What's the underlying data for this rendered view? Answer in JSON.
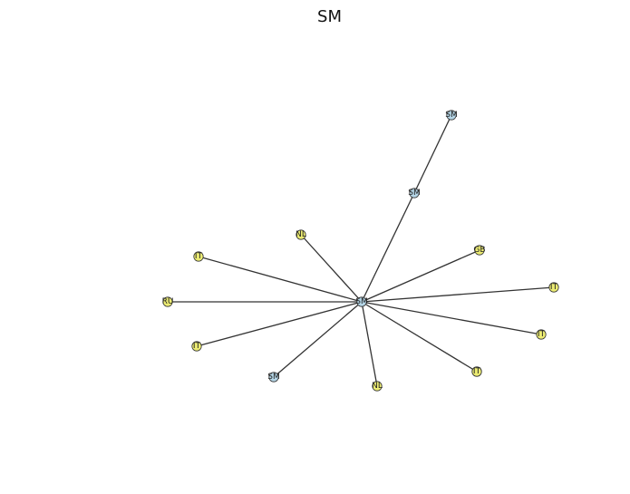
{
  "title": "SM",
  "colors": {
    "node_yellow": "#ecec73",
    "node_blue": "#b4d5e6",
    "edge": "#333333"
  },
  "graph": {
    "center": "n0",
    "nodes": [
      {
        "id": "n0",
        "label": "SM",
        "color": "node_blue"
      },
      {
        "id": "n1",
        "label": "SM",
        "color": "node_blue"
      },
      {
        "id": "n2",
        "label": "SM",
        "color": "node_blue"
      },
      {
        "id": "n3",
        "label": "NL",
        "color": "node_yellow"
      },
      {
        "id": "n4",
        "label": "GB",
        "color": "node_yellow"
      },
      {
        "id": "n5",
        "label": "IT",
        "color": "node_yellow"
      },
      {
        "id": "n6",
        "label": "IT",
        "color": "node_yellow"
      },
      {
        "id": "n7",
        "label": "IT",
        "color": "node_yellow"
      },
      {
        "id": "n8",
        "label": "IT",
        "color": "node_yellow"
      },
      {
        "id": "n9",
        "label": "NL",
        "color": "node_yellow"
      },
      {
        "id": "n10",
        "label": "SM",
        "color": "node_blue"
      },
      {
        "id": "n11",
        "label": "IT",
        "color": "node_yellow"
      },
      {
        "id": "n12",
        "label": "RU",
        "color": "node_yellow"
      },
      {
        "id": "n13",
        "label": "IT",
        "color": "node_yellow"
      }
    ],
    "edges": [
      [
        "n0",
        "n1"
      ],
      [
        "n1",
        "n2"
      ],
      [
        "n0",
        "n3"
      ],
      [
        "n0",
        "n4"
      ],
      [
        "n0",
        "n5"
      ],
      [
        "n0",
        "n6"
      ],
      [
        "n0",
        "n7"
      ],
      [
        "n0",
        "n9"
      ],
      [
        "n0",
        "n10"
      ],
      [
        "n0",
        "n11"
      ],
      [
        "n0",
        "n12"
      ],
      [
        "n0",
        "n13"
      ]
    ]
  }
}
